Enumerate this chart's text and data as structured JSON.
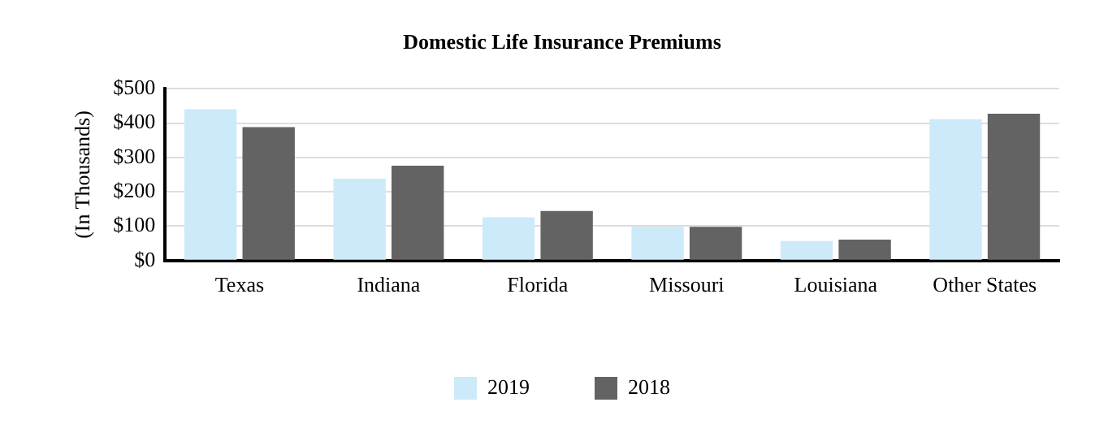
{
  "chart_data": {
    "type": "bar",
    "title": "Domestic Life Insurance Premiums",
    "ylabel": "(In Thousands)",
    "categories": [
      "Texas",
      "Indiana",
      "Florida",
      "Missouri",
      "Louisiana",
      "Other States"
    ],
    "series": [
      {
        "name": "2019",
        "color": "#cdeafb",
        "values": [
          440,
          238,
          126,
          98,
          57,
          411
        ]
      },
      {
        "name": "2018",
        "color": "#636363",
        "values": [
          388,
          276,
          144,
          98,
          61,
          427
        ]
      }
    ],
    "ylim": [
      0,
      500
    ],
    "yticks": [
      {
        "value": 0,
        "label": "$0"
      },
      {
        "value": 100,
        "label": "$100"
      },
      {
        "value": 200,
        "label": "$200"
      },
      {
        "value": 300,
        "label": "$300"
      },
      {
        "value": 400,
        "label": "$400"
      },
      {
        "value": 500,
        "label": "$500"
      }
    ],
    "grid": "y",
    "legend": "bottom"
  }
}
